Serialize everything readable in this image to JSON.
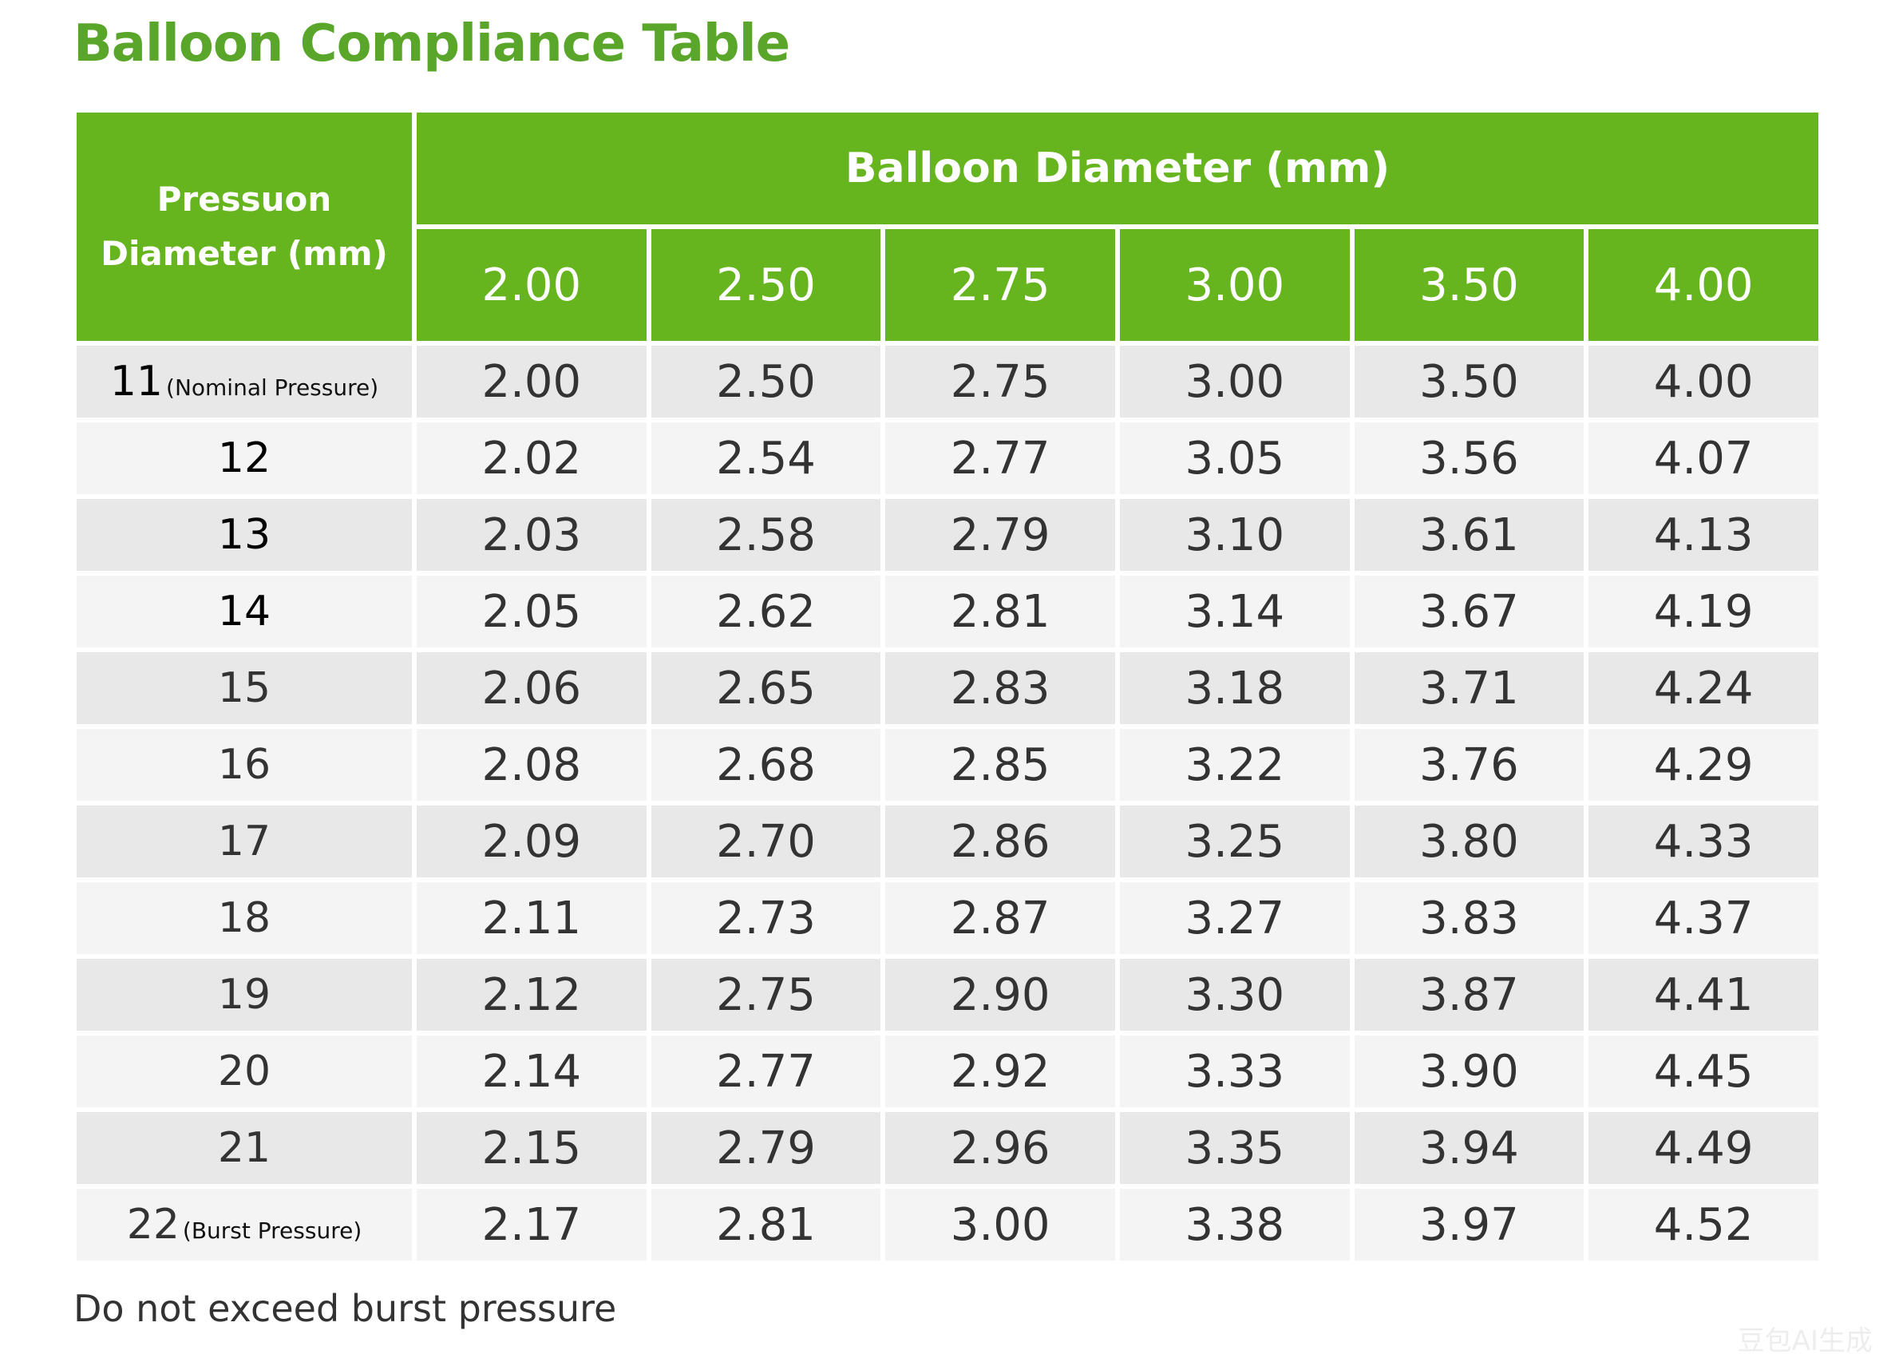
{
  "title": "Balloon Compliance Table",
  "header": {
    "corner_line1": "Pressuon",
    "corner_line2": "Diameter (mm)",
    "group_label": "Balloon Diameter (mm)",
    "columns": [
      "2.00",
      "2.50",
      "2.75",
      "3.00",
      "3.50",
      "4.00"
    ]
  },
  "rows": [
    {
      "pressure": "11",
      "note": "(Nominal Pressure)",
      "values": [
        "2.00",
        "2.50",
        "2.75",
        "3.00",
        "3.50",
        "4.00"
      ]
    },
    {
      "pressure": "12",
      "note": "",
      "values": [
        "2.02",
        "2.54",
        "2.77",
        "3.05",
        "3.56",
        "4.07"
      ]
    },
    {
      "pressure": "13",
      "note": "",
      "values": [
        "2.03",
        "2.58",
        "2.79",
        "3.10",
        "3.61",
        "4.13"
      ]
    },
    {
      "pressure": "14",
      "note": "",
      "values": [
        "2.05",
        "2.62",
        "2.81",
        "3.14",
        "3.67",
        "4.19"
      ]
    },
    {
      "pressure": "15",
      "note": "",
      "values": [
        "2.06",
        "2.65",
        "2.83",
        "3.18",
        "3.71",
        "4.24"
      ]
    },
    {
      "pressure": "16",
      "note": "",
      "values": [
        "2.08",
        "2.68",
        "2.85",
        "3.22",
        "3.76",
        "4.29"
      ]
    },
    {
      "pressure": "17",
      "note": "",
      "values": [
        "2.09",
        "2.70",
        "2.86",
        "3.25",
        "3.80",
        "4.33"
      ]
    },
    {
      "pressure": "18",
      "note": "",
      "values": [
        "2.11",
        "2.73",
        "2.87",
        "3.27",
        "3.83",
        "4.37"
      ]
    },
    {
      "pressure": "19",
      "note": "",
      "values": [
        "2.12",
        "2.75",
        "2.90",
        "3.30",
        "3.87",
        "4.41"
      ]
    },
    {
      "pressure": "20",
      "note": "",
      "values": [
        "2.14",
        "2.77",
        "2.92",
        "3.33",
        "3.90",
        "4.45"
      ]
    },
    {
      "pressure": "21",
      "note": "",
      "values": [
        "2.15",
        "2.79",
        "2.96",
        "3.35",
        "3.94",
        "4.49"
      ]
    },
    {
      "pressure": "22",
      "note": "(Burst Pressure)",
      "values": [
        "2.17",
        "2.81",
        "3.00",
        "3.38",
        "3.97",
        "4.52"
      ]
    }
  ],
  "footnote": "Do not exceed burst pressure",
  "watermark": "豆包AI生成",
  "colors": {
    "title": "#5aa62b",
    "header_bg": "#66b51f",
    "row_shade": "#e8e8e8",
    "row_light": "#f4f4f4"
  }
}
